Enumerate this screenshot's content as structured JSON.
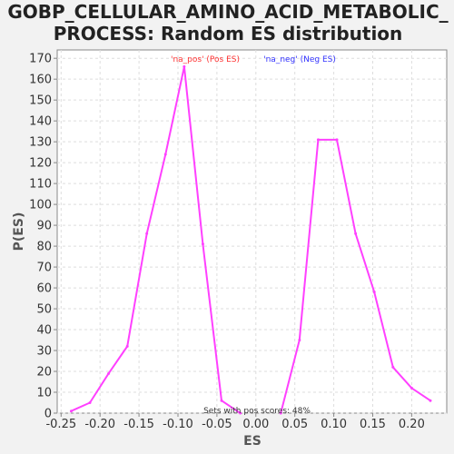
{
  "chart_data": {
    "type": "line",
    "title_lines": [
      "GOBP_CELLULAR_AMINO_ACID_METABOLIC_",
      "PROCESS: Random ES distribution"
    ],
    "xlabel": "ES",
    "ylabel": "P(ES)",
    "xlim": [
      -0.255,
      0.245
    ],
    "ylim": [
      0,
      174
    ],
    "x_ticks": [
      -0.25,
      -0.2,
      -0.15,
      -0.1,
      -0.05,
      0.0,
      0.05,
      0.1,
      0.15,
      0.2
    ],
    "x_tick_labels": [
      "-0.25",
      "-0.20",
      "-0.15",
      "-0.10",
      "-0.05",
      "0.00",
      "0.05",
      "0.10",
      "0.15",
      "0.20"
    ],
    "y_ticks": [
      0,
      10,
      20,
      30,
      40,
      50,
      60,
      70,
      80,
      90,
      100,
      110,
      120,
      130,
      140,
      150,
      160,
      170
    ],
    "grid": true,
    "legend_position": "top",
    "series": [
      {
        "name": "'na_pos' (Pos ES)",
        "color": "#ff3333",
        "x": [
          -0.237,
          -0.213,
          -0.189,
          -0.165,
          -0.14,
          -0.116,
          -0.092,
          -0.068,
          -0.044,
          -0.02
        ],
        "y": [
          1,
          5,
          19,
          32,
          86,
          124,
          166,
          81,
          6,
          0
        ]
      },
      {
        "name": "'na_neg' (Neg ES)",
        "color": "#3333ff",
        "x": [
          0.032,
          0.056,
          0.08,
          0.104,
          0.128,
          0.152,
          0.176,
          0.2,
          0.224
        ],
        "y": [
          0,
          35,
          131,
          131,
          86,
          58,
          22,
          12,
          6
        ]
      }
    ],
    "line_color": "#ff40ff",
    "annotation": "Sets with pos scores: 48%"
  }
}
